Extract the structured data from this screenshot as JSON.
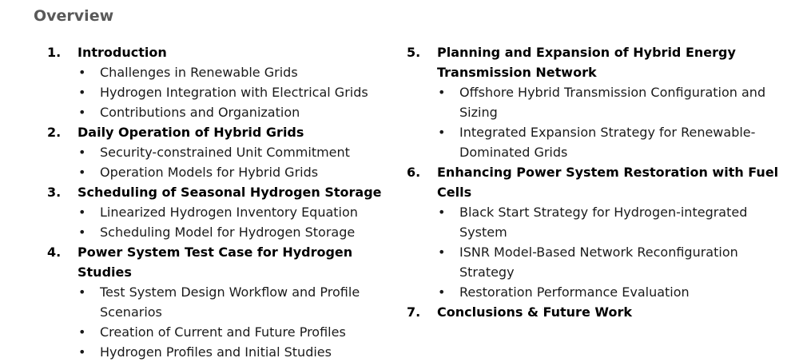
{
  "title": "Overview",
  "bullet_glyph": "•",
  "left_sections": [
    {
      "number": "1.",
      "title": "Introduction",
      "items": [
        "Challenges in Renewable Grids",
        "Hydrogen Integration with Electrical Grids",
        "Contributions and Organization"
      ]
    },
    {
      "number": "2.",
      "title": "Daily Operation of Hybrid Grids",
      "items": [
        "Security-constrained Unit Commitment",
        "Operation Models for Hybrid Grids"
      ]
    },
    {
      "number": "3.",
      "title": "Scheduling of Seasonal Hydrogen Storage",
      "items": [
        "Linearized Hydrogen Inventory Equation",
        "Scheduling Model for Hydrogen Storage"
      ]
    },
    {
      "number": "4.",
      "title": "Power System Test Case for Hydrogen Studies",
      "items": [
        "Test System Design Workflow and Profile Scenarios",
        "Creation of Current and Future Profiles",
        "Hydrogen Profiles and Initial Studies"
      ]
    }
  ],
  "right_sections": [
    {
      "number": "5.",
      "title": "Planning and Expansion of Hybrid Energy Transmission Network",
      "items": [
        "Offshore Hybrid Transmission Configuration and Sizing",
        "Integrated Expansion Strategy for Renewable-Dominated Grids"
      ]
    },
    {
      "number": "6.",
      "title": "Enhancing Power System Restoration with Fuel Cells",
      "items": [
        "Black Start Strategy for Hydrogen-integrated System",
        "ISNR Model-Based Network Reconfiguration Strategy",
        "Restoration Performance Evaluation"
      ]
    },
    {
      "number": "7.",
      "title": "Conclusions & Future Work",
      "items": []
    }
  ]
}
